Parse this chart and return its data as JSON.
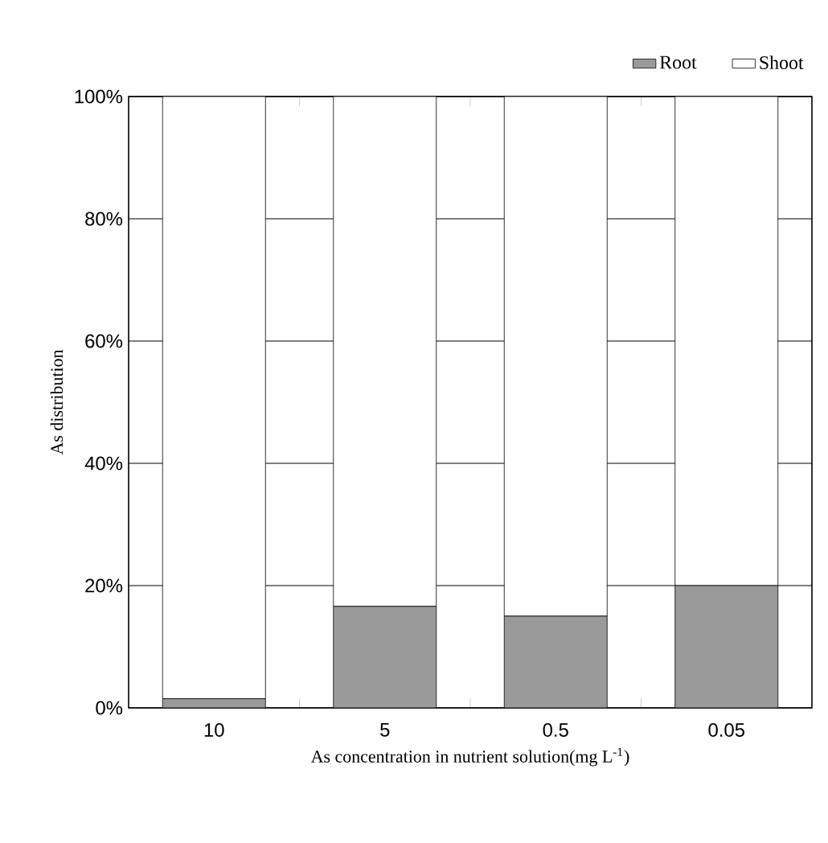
{
  "chart_data": {
    "type": "bar",
    "stacked": true,
    "categories": [
      "10",
      "5",
      "0.5",
      "0.05"
    ],
    "series": [
      {
        "name": "Root",
        "color": "#9a9a9a",
        "values": [
          1.5,
          16.6,
          15,
          20
        ]
      },
      {
        "name": "Shoot",
        "color": "#ffffff",
        "values": [
          98.5,
          83.4,
          85,
          80
        ]
      }
    ],
    "ylim": [
      0,
      100
    ],
    "yticks": [
      {
        "value": 0,
        "label": "0%"
      },
      {
        "value": 20,
        "label": "20%"
      },
      {
        "value": 40,
        "label": "40%"
      },
      {
        "value": 60,
        "label": "60%"
      },
      {
        "value": 80,
        "label": "80%"
      },
      {
        "value": 100,
        "label": "100%"
      }
    ],
    "grid": "y",
    "legend": "top right",
    "xlabel": "As concentration in nutrient solution(mg L$^{-1}$)",
    "ylabel": "As distribution"
  }
}
